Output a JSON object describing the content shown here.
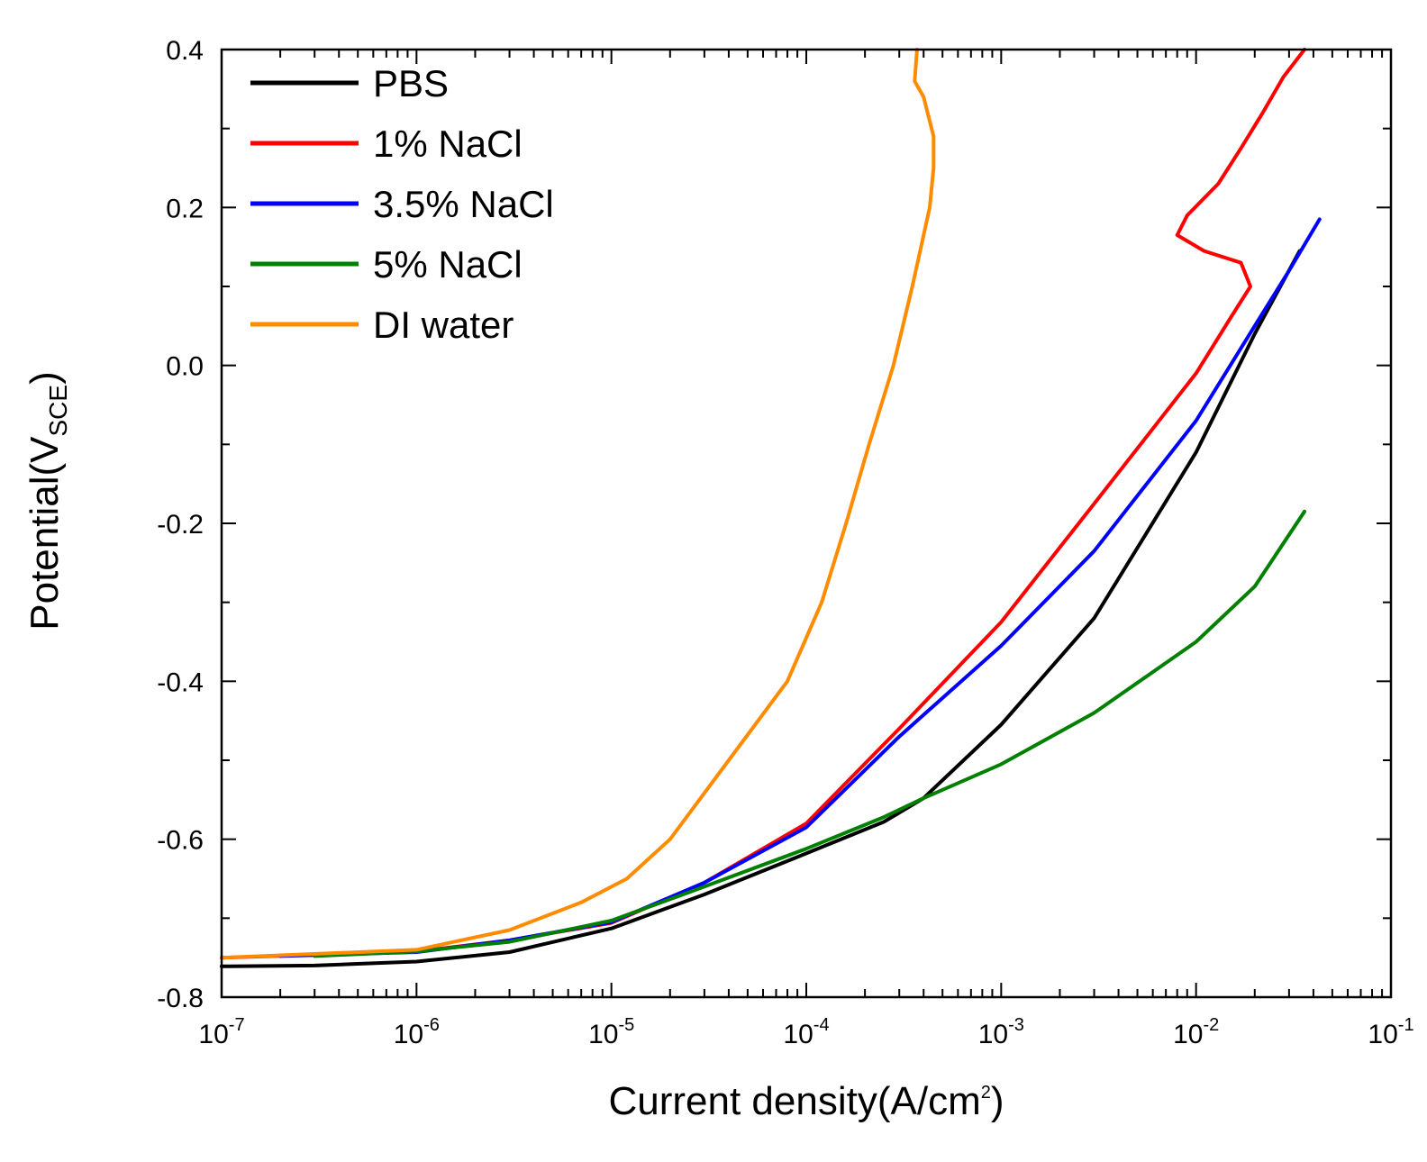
{
  "chart_data": {
    "type": "line",
    "title": "",
    "xlabel": {
      "main": "Current density(A/cm",
      "sup": "2",
      "close": ")"
    },
    "ylabel": {
      "main": "Potential(V",
      "sub": "SCE",
      "close": ")"
    },
    "xscale": "log",
    "xlim": [
      1e-07,
      0.1
    ],
    "ylim": [
      -0.8,
      0.4
    ],
    "x_ticks": [
      {
        "value": 1e-07,
        "base": "10",
        "exp": "-7"
      },
      {
        "value": 1e-06,
        "base": "10",
        "exp": "-6"
      },
      {
        "value": 1e-05,
        "base": "10",
        "exp": "-5"
      },
      {
        "value": 0.0001,
        "base": "10",
        "exp": "-4"
      },
      {
        "value": 0.001,
        "base": "10",
        "exp": "-3"
      },
      {
        "value": 0.01,
        "base": "10",
        "exp": "-2"
      },
      {
        "value": 0.1,
        "base": "10",
        "exp": "-1"
      }
    ],
    "y_ticks": [
      {
        "value": 0.4,
        "label": "0.4"
      },
      {
        "value": 0.2,
        "label": "0.2"
      },
      {
        "value": 0.0,
        "label": "0.0"
      },
      {
        "value": -0.2,
        "label": "-0.2"
      },
      {
        "value": -0.4,
        "label": "-0.4"
      },
      {
        "value": -0.6,
        "label": "-0.6"
      },
      {
        "value": -0.8,
        "label": "-0.8"
      }
    ],
    "legend_position": "top-left",
    "grid": false,
    "series": [
      {
        "name": "PBS",
        "color": "#000000",
        "points": [
          [
            1e-07,
            -0.761
          ],
          [
            3e-07,
            -0.76
          ],
          [
            1e-06,
            -0.755
          ],
          [
            3e-06,
            -0.743
          ],
          [
            1e-05,
            -0.713
          ],
          [
            3e-05,
            -0.67
          ],
          [
            0.0001,
            -0.618
          ],
          [
            0.00025,
            -0.578
          ],
          [
            0.0004,
            -0.548
          ],
          [
            0.001,
            -0.455
          ],
          [
            0.003,
            -0.32
          ],
          [
            0.01,
            -0.11
          ],
          [
            0.02,
            0.04
          ],
          [
            0.034,
            0.145
          ]
        ]
      },
      {
        "name": "1% NaCl",
        "color": "#ff0000",
        "points": [
          [
            1e-07,
            -0.75
          ],
          [
            1e-06,
            -0.742
          ],
          [
            3e-06,
            -0.728
          ],
          [
            1e-05,
            -0.706
          ],
          [
            3e-05,
            -0.655
          ],
          [
            0.0001,
            -0.58
          ],
          [
            0.0003,
            -0.46
          ],
          [
            0.001,
            -0.325
          ],
          [
            0.003,
            -0.175
          ],
          [
            0.01,
            -0.01
          ],
          [
            0.015,
            0.06
          ],
          [
            0.019,
            0.1
          ],
          [
            0.017,
            0.13
          ],
          [
            0.011,
            0.145
          ],
          [
            0.008,
            0.165
          ],
          [
            0.009,
            0.19
          ],
          [
            0.013,
            0.23
          ],
          [
            0.017,
            0.275
          ],
          [
            0.022,
            0.32
          ],
          [
            0.028,
            0.365
          ],
          [
            0.036,
            0.4
          ]
        ]
      },
      {
        "name": "3.5% NaCl",
        "color": "#0000ff",
        "points": [
          [
            2e-07,
            -0.748
          ],
          [
            1e-06,
            -0.743
          ],
          [
            3e-06,
            -0.728
          ],
          [
            1e-05,
            -0.705
          ],
          [
            3e-05,
            -0.655
          ],
          [
            0.0001,
            -0.585
          ],
          [
            0.0003,
            -0.47
          ],
          [
            0.001,
            -0.355
          ],
          [
            0.003,
            -0.235
          ],
          [
            0.01,
            -0.07
          ],
          [
            0.02,
            0.05
          ],
          [
            0.03,
            0.12
          ],
          [
            0.043,
            0.185
          ]
        ]
      },
      {
        "name": "5% NaCl",
        "color": "#008000",
        "points": [
          [
            3e-07,
            -0.748
          ],
          [
            1e-06,
            -0.742
          ],
          [
            3e-06,
            -0.73
          ],
          [
            1e-05,
            -0.703
          ],
          [
            3e-05,
            -0.66
          ],
          [
            0.0001,
            -0.612
          ],
          [
            0.00025,
            -0.572
          ],
          [
            0.0004,
            -0.548
          ],
          [
            0.001,
            -0.505
          ],
          [
            0.003,
            -0.44
          ],
          [
            0.01,
            -0.35
          ],
          [
            0.02,
            -0.28
          ],
          [
            0.036,
            -0.185
          ]
        ]
      },
      {
        "name": "DI water",
        "color": "#ff8c00",
        "points": [
          [
            1e-07,
            -0.75
          ],
          [
            1e-06,
            -0.74
          ],
          [
            3e-06,
            -0.715
          ],
          [
            7e-06,
            -0.68
          ],
          [
            1.2e-05,
            -0.65
          ],
          [
            2e-05,
            -0.6
          ],
          [
            4e-05,
            -0.5
          ],
          [
            8e-05,
            -0.4
          ],
          [
            0.00012,
            -0.3
          ],
          [
            0.00016,
            -0.2
          ],
          [
            0.00021,
            -0.1
          ],
          [
            0.00028,
            0.0
          ],
          [
            0.00035,
            0.1
          ],
          [
            0.00043,
            0.2
          ],
          [
            0.00045,
            0.25
          ],
          [
            0.00045,
            0.29
          ],
          [
            0.0004,
            0.34
          ],
          [
            0.00036,
            0.36
          ],
          [
            0.00037,
            0.4
          ]
        ]
      }
    ]
  }
}
